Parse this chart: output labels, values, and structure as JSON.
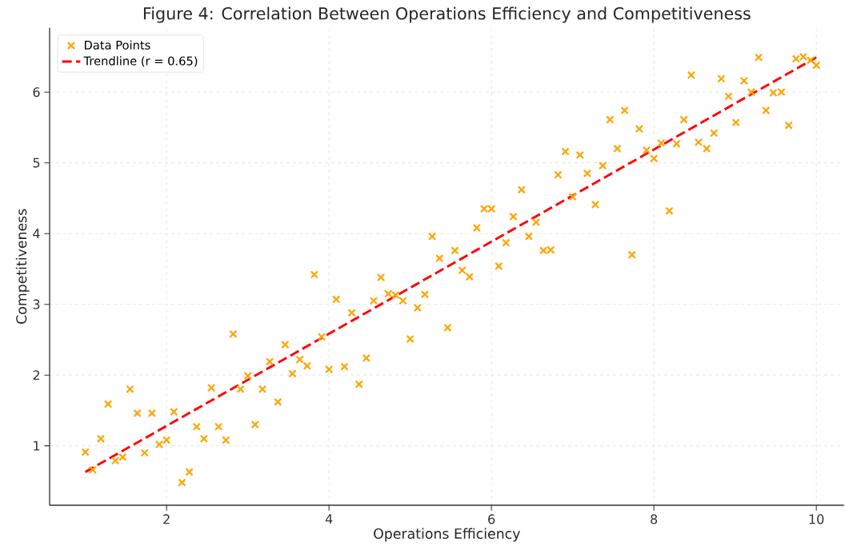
{
  "chart_data": {
    "type": "scatter",
    "title": "Figure 4: Correlation Between Operations Efficiency and Competitiveness",
    "xlabel": "Operations Efficiency",
    "ylabel": "Competitiveness",
    "xlim": [
      0.56,
      10.34
    ],
    "ylim": [
      0.16,
      6.91
    ],
    "xticks": [
      2,
      4,
      6,
      8,
      10
    ],
    "yticks": [
      1,
      2,
      3,
      4,
      5,
      6
    ],
    "grid": true,
    "legend": "top left",
    "series": [
      {
        "name": "Data Points",
        "color": "#ffa500",
        "marker": "cross",
        "x": [
          1.0,
          1.09,
          1.19,
          1.28,
          1.37,
          1.46,
          1.55,
          1.64,
          1.73,
          1.82,
          1.91,
          2.0,
          2.09,
          2.19,
          2.28,
          2.37,
          2.46,
          2.55,
          2.64,
          2.73,
          2.82,
          2.91,
          3.0,
          3.09,
          3.18,
          3.27,
          3.37,
          3.46,
          3.55,
          3.64,
          3.73,
          3.82,
          3.91,
          4.0,
          4.09,
          4.19,
          4.28,
          4.37,
          4.46,
          4.55,
          4.64,
          4.73,
          4.82,
          4.91,
          5.0,
          5.09,
          5.18,
          5.27,
          5.36,
          5.46,
          5.55,
          5.64,
          5.73,
          5.82,
          5.91,
          6.0,
          6.09,
          6.18,
          6.27,
          6.37,
          6.46,
          6.55,
          6.64,
          6.73,
          6.82,
          6.91,
          7.0,
          7.09,
          7.18,
          7.28,
          7.37,
          7.46,
          7.55,
          7.64,
          7.73,
          7.82,
          7.91,
          8.0,
          8.09,
          8.19,
          8.28,
          8.37,
          8.46,
          8.55,
          8.65,
          8.74,
          8.83,
          8.92,
          9.01,
          9.11,
          9.2,
          9.29,
          9.38,
          9.47,
          9.57,
          9.66,
          9.75,
          9.84,
          9.93,
          10.0
        ],
        "values": [
          0.91,
          0.66,
          1.1,
          1.59,
          0.79,
          0.84,
          1.8,
          1.46,
          0.9,
          1.46,
          1.02,
          1.08,
          1.48,
          0.48,
          0.63,
          1.27,
          1.1,
          1.82,
          1.27,
          1.08,
          2.58,
          1.8,
          1.99,
          1.3,
          1.8,
          2.19,
          1.62,
          2.43,
          2.02,
          2.22,
          2.13,
          3.42,
          2.54,
          2.08,
          3.07,
          2.12,
          2.88,
          1.87,
          2.24,
          3.05,
          3.38,
          3.15,
          3.13,
          3.05,
          2.51,
          2.95,
          3.14,
          3.96,
          3.65,
          2.67,
          3.76,
          3.48,
          3.39,
          4.08,
          4.35,
          4.35,
          3.54,
          3.87,
          4.24,
          4.62,
          3.96,
          4.16,
          3.76,
          3.77,
          4.83,
          5.16,
          4.52,
          5.11,
          4.85,
          4.41,
          4.96,
          5.61,
          5.2,
          5.74,
          3.7,
          5.48,
          5.18,
          5.06,
          5.28,
          4.32,
          5.27,
          5.61,
          6.24,
          5.29,
          5.2,
          5.42,
          6.19,
          5.94,
          5.57,
          6.16,
          6.0,
          6.49,
          5.74,
          5.99,
          6.0,
          5.53,
          6.47,
          6.5,
          6.45,
          6.38
        ]
      },
      {
        "name": "Trendline (r = 0.65)",
        "type": "line",
        "color": "#ff0000",
        "line_style": "dashed",
        "marker": "none",
        "x": [
          1,
          10
        ],
        "values": [
          0.63,
          6.49
        ]
      }
    ]
  }
}
